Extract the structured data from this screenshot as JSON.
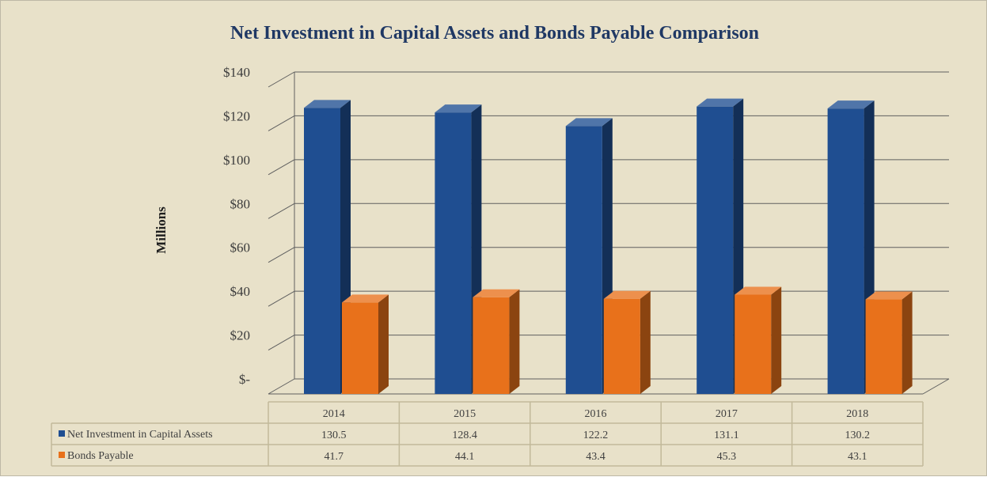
{
  "chart_data": {
    "type": "bar",
    "title": "Net Investment in Capital Assets and Bonds Payable Comparison",
    "xlabel": "",
    "ylabel": "Millions",
    "categories": [
      "2014",
      "2015",
      "2016",
      "2017",
      "2018"
    ],
    "series": [
      {
        "name": "Net Investment in Capital Assets",
        "values": [
          130.5,
          128.4,
          122.2,
          131.1,
          130.2
        ],
        "value_labels": [
          "130.5",
          "128.4",
          "122.2",
          "131.1",
          "130.2"
        ],
        "color": "#1f4e91"
      },
      {
        "name": "Bonds Payable",
        "values": [
          41.7,
          44.1,
          43.4,
          45.3,
          43.1
        ],
        "value_labels": [
          "41.7",
          "44.1",
          "43.4",
          "45.3",
          "43.1"
        ],
        "color": "#e8711b"
      }
    ],
    "ylim": [
      0,
      140
    ],
    "yticks": [
      0,
      20,
      40,
      60,
      80,
      100,
      120,
      140
    ],
    "ytick_labels": [
      "$-",
      "$20",
      "$40",
      "$60",
      "$80",
      "$100",
      "$120",
      "$140"
    ],
    "grid": true,
    "legend": "data table",
    "style": "3d-column"
  },
  "colors": {
    "background": "#e8e1c9",
    "title": "#1f3864",
    "grid": "#5f5f5f",
    "table_border": "#c2b99a"
  }
}
